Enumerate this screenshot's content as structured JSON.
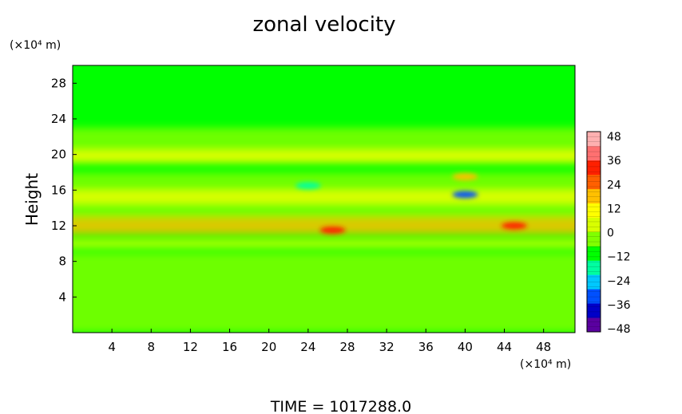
{
  "chart_data": {
    "type": "heatmap",
    "title": "zonal velocity",
    "xlabel": "",
    "ylabel": "Height",
    "x_unit": "(×10⁴ m)",
    "y_unit": "(×10⁴ m)",
    "x_ticks": [
      4,
      8,
      12,
      16,
      20,
      24,
      28,
      32,
      36,
      40,
      44,
      48
    ],
    "y_ticks": [
      4,
      8,
      12,
      16,
      20,
      24,
      28
    ],
    "xlim": [
      0,
      51.2
    ],
    "ylim": [
      0,
      30
    ],
    "grid": false,
    "colorbar": {
      "ticks": [
        48,
        36,
        24,
        12,
        0,
        -12,
        -24,
        -36,
        -48
      ],
      "range": [
        -48,
        48
      ],
      "colors": [
        "#5a00a0",
        "#0000c8",
        "#0050ff",
        "#00c8ff",
        "#00ffa0",
        "#00ff00",
        "#80ff00",
        "#d8ff00",
        "#ffff00",
        "#ffc000",
        "#ff6000",
        "#ff2000",
        "#ff7070",
        "#ffb0b0"
      ]
    },
    "bands": [
      {
        "y": [
          0,
          3
        ],
        "value": -6
      },
      {
        "y": [
          3,
          7
        ],
        "value": -4
      },
      {
        "y": [
          7,
          9
        ],
        "value": -5
      },
      {
        "y": [
          9.5,
          10.5
        ],
        "value": 4
      },
      {
        "y": [
          11,
          13
        ],
        "value": 14
      },
      {
        "y": [
          13,
          14.5
        ],
        "value": -6
      },
      {
        "y": [
          14.5,
          16
        ],
        "value": 8
      },
      {
        "y": [
          16,
          18
        ],
        "value": -5
      },
      {
        "y": [
          19,
          20.5
        ],
        "value": 10
      },
      {
        "y": [
          20.5,
          23
        ],
        "value": -3
      }
    ],
    "extremes": [
      {
        "x": 24,
        "y": 16.5,
        "value": -18
      },
      {
        "x": 40,
        "y": 15.5,
        "value": -28
      },
      {
        "x": 26.5,
        "y": 11.5,
        "value": 34
      },
      {
        "x": 45,
        "y": 12,
        "value": 30
      },
      {
        "x": 40,
        "y": 17.5,
        "value": 20
      }
    ]
  },
  "footer": {
    "time_text": "TIME  =  1017288.0"
  }
}
